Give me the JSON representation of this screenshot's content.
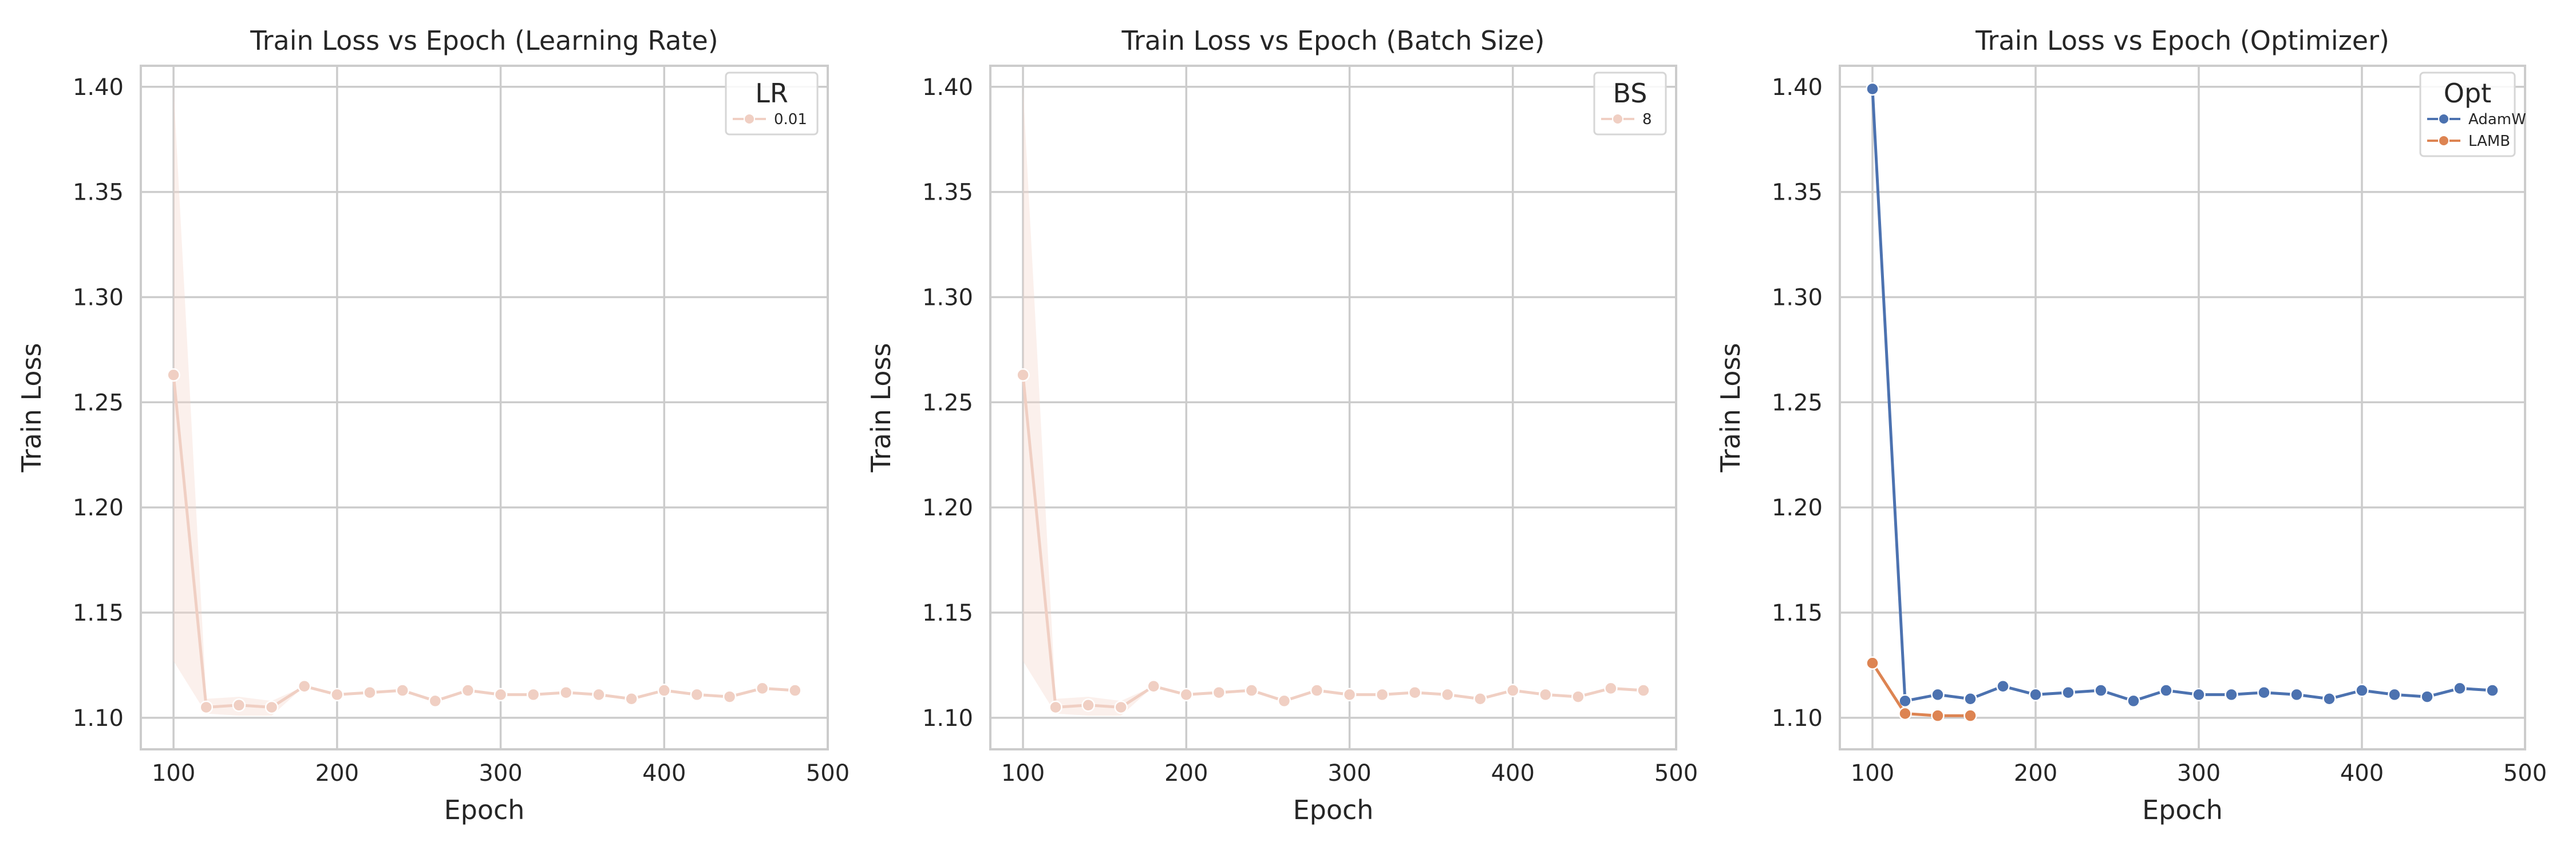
{
  "chart_data": [
    {
      "type": "line",
      "title": "Train Loss vs Epoch (Learning Rate)",
      "xlabel": "Epoch",
      "ylabel": "Train Loss",
      "xlim": [
        80,
        500
      ],
      "ylim": [
        1.085,
        1.41
      ],
      "x_ticks": [
        "100",
        "200",
        "300",
        "400",
        "500"
      ],
      "y_ticks": [
        "1.10",
        "1.15",
        "1.20",
        "1.25",
        "1.30",
        "1.35",
        "1.40"
      ],
      "grid": true,
      "legend": {
        "title": "LR",
        "placement": "top-right"
      },
      "series": [
        {
          "name": "0.01",
          "color": "#f0cfc3",
          "band_color": "#f4d3c8",
          "x": [
            100,
            120,
            140,
            160,
            180,
            200,
            220,
            240,
            260,
            280,
            300,
            320,
            340,
            360,
            380,
            400,
            420,
            440,
            460,
            480
          ],
          "y": [
            1.263,
            1.105,
            1.106,
            1.105,
            1.115,
            1.111,
            1.112,
            1.113,
            1.108,
            1.113,
            1.111,
            1.111,
            1.112,
            1.111,
            1.109,
            1.113,
            1.111,
            1.11,
            1.114,
            1.113
          ],
          "band_upper": [
            1.4,
            1.109,
            1.11,
            1.108,
            1.115,
            1.111,
            1.112,
            1.113,
            1.108,
            1.113,
            1.111,
            1.111,
            1.112,
            1.111,
            1.109,
            1.113,
            1.111,
            1.11,
            1.114,
            1.113
          ],
          "band_lower": [
            1.127,
            1.102,
            1.101,
            1.101,
            1.115,
            1.111,
            1.112,
            1.113,
            1.108,
            1.113,
            1.111,
            1.111,
            1.112,
            1.111,
            1.109,
            1.113,
            1.111,
            1.11,
            1.114,
            1.113
          ]
        }
      ]
    },
    {
      "type": "line",
      "title": "Train Loss vs Epoch (Batch Size)",
      "xlabel": "Epoch",
      "ylabel": "Train Loss",
      "xlim": [
        80,
        500
      ],
      "ylim": [
        1.085,
        1.41
      ],
      "x_ticks": [
        "100",
        "200",
        "300",
        "400",
        "500"
      ],
      "y_ticks": [
        "1.10",
        "1.15",
        "1.20",
        "1.25",
        "1.30",
        "1.35",
        "1.40"
      ],
      "grid": true,
      "legend": {
        "title": "BS",
        "placement": "top-right"
      },
      "series": [
        {
          "name": "8",
          "color": "#f0cfc3",
          "band_color": "#f4d3c8",
          "x": [
            100,
            120,
            140,
            160,
            180,
            200,
            220,
            240,
            260,
            280,
            300,
            320,
            340,
            360,
            380,
            400,
            420,
            440,
            460,
            480
          ],
          "y": [
            1.263,
            1.105,
            1.106,
            1.105,
            1.115,
            1.111,
            1.112,
            1.113,
            1.108,
            1.113,
            1.111,
            1.111,
            1.112,
            1.111,
            1.109,
            1.113,
            1.111,
            1.11,
            1.114,
            1.113
          ],
          "band_upper": [
            1.4,
            1.109,
            1.11,
            1.108,
            1.115,
            1.111,
            1.112,
            1.113,
            1.108,
            1.113,
            1.111,
            1.111,
            1.112,
            1.111,
            1.109,
            1.113,
            1.111,
            1.11,
            1.114,
            1.113
          ],
          "band_lower": [
            1.127,
            1.102,
            1.101,
            1.101,
            1.115,
            1.111,
            1.112,
            1.113,
            1.108,
            1.113,
            1.111,
            1.111,
            1.112,
            1.111,
            1.109,
            1.113,
            1.111,
            1.11,
            1.114,
            1.113
          ]
        }
      ]
    },
    {
      "type": "line",
      "title": "Train Loss vs Epoch (Optimizer)",
      "xlabel": "Epoch",
      "ylabel": "Train Loss",
      "xlim": [
        80,
        500
      ],
      "ylim": [
        1.085,
        1.41
      ],
      "x_ticks": [
        "100",
        "200",
        "300",
        "400",
        "500"
      ],
      "y_ticks": [
        "1.10",
        "1.15",
        "1.20",
        "1.25",
        "1.30",
        "1.35",
        "1.40"
      ],
      "grid": true,
      "legend": {
        "title": "Opt",
        "placement": "top-right"
      },
      "series": [
        {
          "name": "AdamW",
          "color": "#4c72b0",
          "x": [
            100,
            120,
            140,
            160,
            180,
            200,
            220,
            240,
            260,
            280,
            300,
            320,
            340,
            360,
            380,
            400,
            420,
            440,
            460,
            480
          ],
          "y": [
            1.399,
            1.108,
            1.111,
            1.109,
            1.115,
            1.111,
            1.112,
            1.113,
            1.108,
            1.113,
            1.111,
            1.111,
            1.112,
            1.111,
            1.109,
            1.113,
            1.111,
            1.11,
            1.114,
            1.113
          ]
        },
        {
          "name": "LAMB",
          "color": "#dd8452",
          "x": [
            100,
            120,
            140,
            160
          ],
          "y": [
            1.126,
            1.102,
            1.101,
            1.101
          ]
        }
      ]
    }
  ]
}
